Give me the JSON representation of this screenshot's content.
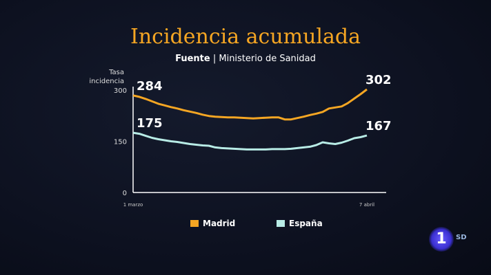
{
  "title": "Incidencia acumulada",
  "source_label": "Fuente",
  "source": "Ministerio de Sanidad",
  "logo": {
    "channel": "1",
    "quality": "SD"
  },
  "chart_data": {
    "type": "line",
    "ylabel": "Tasa incidencia",
    "ylim": [
      0,
      300
    ],
    "yticks": [
      "0",
      "150",
      "300"
    ],
    "x_start_label": "1 marzo",
    "x_end_label": "7 abril",
    "x_days": 38,
    "legend_position": "bottom",
    "series": [
      {
        "name": "Madrid",
        "color": "#f5a623",
        "start_label": "284",
        "end_label": "302",
        "values": [
          284,
          280,
          274,
          267,
          260,
          255,
          250,
          246,
          241,
          237,
          233,
          228,
          224,
          222,
          221,
          220,
          220,
          219,
          218,
          217,
          218,
          219,
          220,
          220,
          214,
          214,
          218,
          222,
          227,
          231,
          236,
          246,
          249,
          252,
          262,
          275,
          288,
          302
        ]
      },
      {
        "name": "España",
        "color": "#b8ece6",
        "start_label": "175",
        "end_label": "167",
        "values": [
          175,
          172,
          166,
          160,
          156,
          153,
          150,
          148,
          145,
          142,
          140,
          138,
          137,
          132,
          130,
          129,
          128,
          127,
          126,
          126,
          126,
          126,
          127,
          127,
          127,
          128,
          130,
          132,
          134,
          139,
          147,
          144,
          142,
          146,
          152,
          159,
          162,
          167
        ]
      }
    ]
  }
}
